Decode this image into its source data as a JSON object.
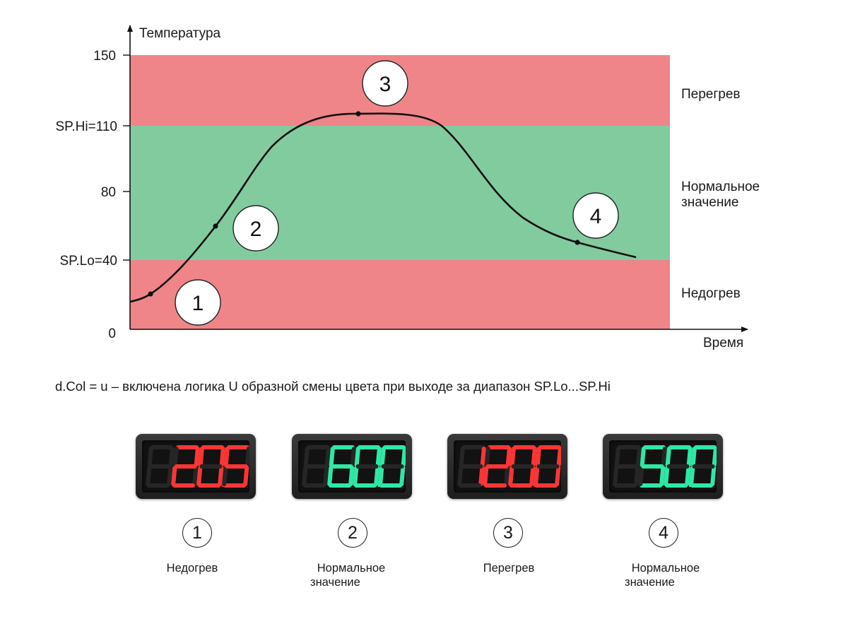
{
  "chart": {
    "y_axis_label": "Температура",
    "x_axis_label": "Время",
    "y_ticks": [
      "150",
      "SP.Hi=110",
      "80",
      "SP.Lo=40",
      "0"
    ],
    "zones": {
      "overheat": "Перегрев",
      "normal_line1": "Нормальное",
      "normal_line2": "значение",
      "underheat": "Недогрев"
    },
    "callouts": [
      "1",
      "2",
      "3",
      "4"
    ],
    "colors": {
      "alarm_zone": "#ef8589",
      "normal_zone": "#82cb9e"
    }
  },
  "caption": "d.Col = u – включена логика U образной смены цвета при выходе за диапазон SP.Lo...SP.Hi",
  "indicators": [
    {
      "number": "1",
      "display": "20.5",
      "color": "#ff3535",
      "label_line1": "Недогрев",
      "label_line2": ""
    },
    {
      "number": "2",
      "display": "60.0",
      "color": "#2ee8a5",
      "label_line1": "Нормальное",
      "label_line2": "значение"
    },
    {
      "number": "3",
      "display": "120.0",
      "color": "#ff3535",
      "label_line1": "Перегрев",
      "label_line2": ""
    },
    {
      "number": "4",
      "display": "50.0",
      "color": "#2ee8a5",
      "label_line1": "Нормальное",
      "label_line2": "значение"
    }
  ]
}
